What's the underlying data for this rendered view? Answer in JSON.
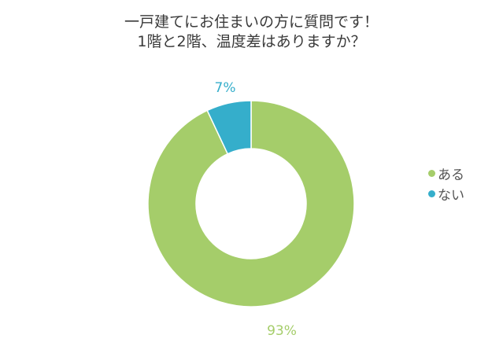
{
  "chart_data": {
    "type": "pie",
    "variant": "donut",
    "title": "一戸建てにお住まいの方に質問です！ 1階と2階、温度差はありますか？",
    "title_lines": [
      "一戸建てにお住まいの方に質問です！",
      "1階と2階、温度差はありますか？"
    ],
    "categories": [
      "ある",
      "ない"
    ],
    "values": [
      93,
      7
    ],
    "unit": "%",
    "data_labels": [
      "93%",
      "7%"
    ],
    "colors": [
      "#A5CD6A",
      "#35AECB"
    ],
    "legend": {
      "position": "right",
      "entries": [
        {
          "label": "ある",
          "color": "#A5CD6A"
        },
        {
          "label": "ない",
          "color": "#35AECB"
        }
      ]
    },
    "start_angle_deg": 0,
    "direction": "clockwise"
  },
  "title": {
    "line1": "一戸建てにお住まいの方に質問です！",
    "line2": "1階と2階、温度差はありますか？"
  },
  "labels": {
    "aru_pct": "93%",
    "nai_pct": "7%"
  },
  "legend": {
    "items": [
      {
        "label": "ある",
        "color": "#A5CD6A"
      },
      {
        "label": "ない",
        "color": "#35AECB"
      }
    ]
  }
}
